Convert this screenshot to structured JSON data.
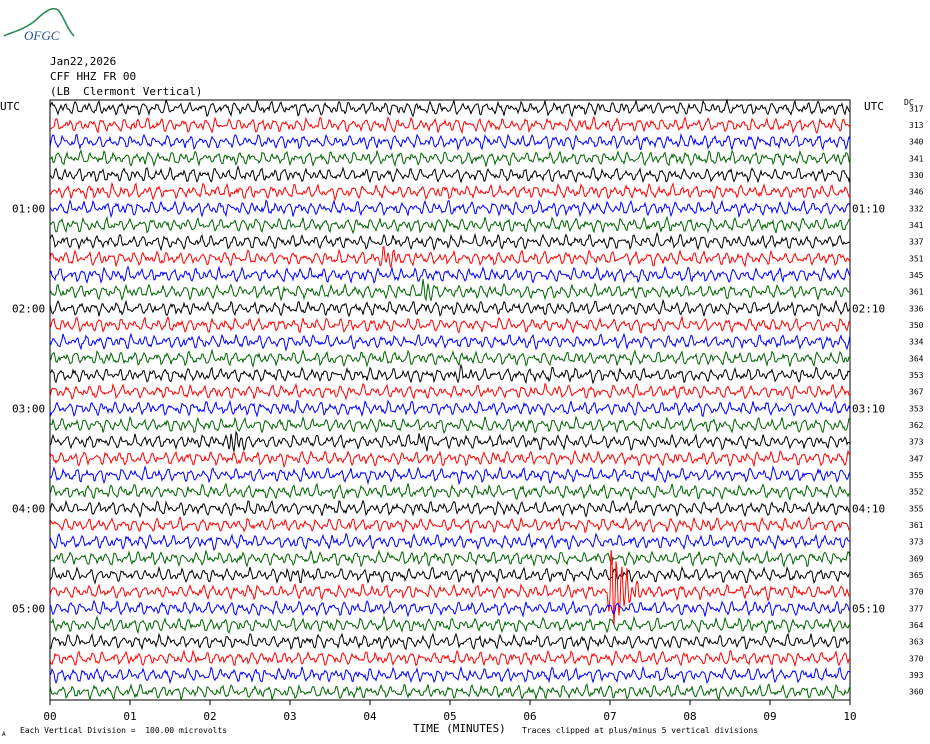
{
  "logo": {
    "text": "OFGC",
    "icon": "ofgc-logo-icon"
  },
  "header": {
    "date": "Jan22,2026",
    "station": "CFF HHZ FR 00",
    "location": "(LB  Clermont Vertical)"
  },
  "left_axis_title": "UTC",
  "right_axis_title": "UTC",
  "dc_label": "DC",
  "footer": {
    "scale_note": "Each Vertical Division =  100.00 microvolts",
    "clip_note": "Traces clipped at plus/minus 5 vertical divisions",
    "corner_mark": "A"
  },
  "chart_data": {
    "type": "line",
    "title": "",
    "xlabel": "TIME (MINUTES)",
    "xlim": [
      0,
      10
    ],
    "x_ticks": [
      "00",
      "01",
      "02",
      "03",
      "04",
      "05",
      "06",
      "07",
      "08",
      "09",
      "10"
    ],
    "trace_colors": [
      "#000000",
      "#ff0000",
      "#0000ff",
      "#006400"
    ],
    "trace_count": 36,
    "left_hour_labels": [
      {
        "row": 6,
        "label": "01:00"
      },
      {
        "row": 12,
        "label": "02:00"
      },
      {
        "row": 18,
        "label": "03:00"
      },
      {
        "row": 24,
        "label": "04:00"
      },
      {
        "row": 30,
        "label": "05:00"
      }
    ],
    "right_hour_labels": [
      {
        "row": 6,
        "label": "01:10"
      },
      {
        "row": 12,
        "label": "02:10"
      },
      {
        "row": 18,
        "label": "03:10"
      },
      {
        "row": 24,
        "label": "04:10"
      },
      {
        "row": 30,
        "label": "05:10"
      }
    ],
    "dc_offsets": [
      317,
      313,
      340,
      341,
      330,
      346,
      332,
      341,
      337,
      351,
      345,
      361,
      336,
      350,
      334,
      364,
      353,
      367,
      353,
      362,
      373,
      347,
      355,
      352,
      355,
      361,
      373,
      369,
      365,
      370,
      377,
      364,
      363,
      370,
      393,
      360
    ],
    "events": [
      {
        "row": 9,
        "minute": 4.15,
        "amplitude": 1.6
      },
      {
        "row": 11,
        "minute": 4.65,
        "amplitude": 1.3
      },
      {
        "row": 16,
        "minute": 5.05,
        "amplitude": 0.7
      },
      {
        "row": 20,
        "minute": 2.25,
        "amplitude": 1.6
      },
      {
        "row": 20,
        "minute": 4.6,
        "amplitude": 1.0
      },
      {
        "row": 28,
        "minute": 2.95,
        "amplitude": 0.8
      },
      {
        "row": 29,
        "minute": 7.0,
        "amplitude": 6.0
      }
    ]
  }
}
